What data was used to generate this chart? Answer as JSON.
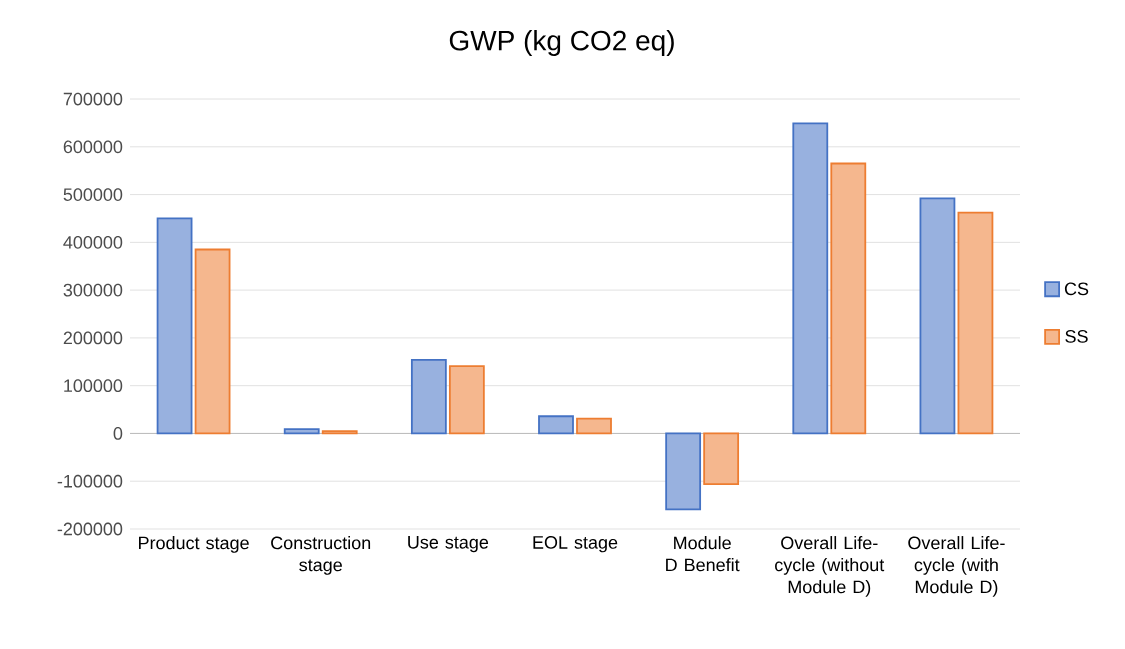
{
  "chart_data": {
    "type": "bar",
    "title": "GWP (kg CO2 eq)",
    "categories": [
      "Product stage",
      "Construction stage",
      "Use stage",
      "EOL stage",
      "Module D Benefit",
      "Overall Life-cycle (without Module D)",
      "Overall Life-cycle (with Module D)"
    ],
    "series": [
      {
        "name": "CS",
        "color": "#4472c4",
        "values": [
          450000,
          9000,
          154000,
          36000,
          -159000,
          649000,
          492000
        ]
      },
      {
        "name": "SS",
        "color": "#ed7d31",
        "values": [
          385000,
          5000,
          141000,
          31000,
          -106000,
          565000,
          462000
        ]
      }
    ],
    "ylim": [
      -200000,
      700000
    ],
    "yticks": [
      -200000,
      -100000,
      0,
      100000,
      200000,
      300000,
      400000,
      500000,
      600000,
      700000
    ],
    "grid": "y",
    "legend": "right"
  }
}
